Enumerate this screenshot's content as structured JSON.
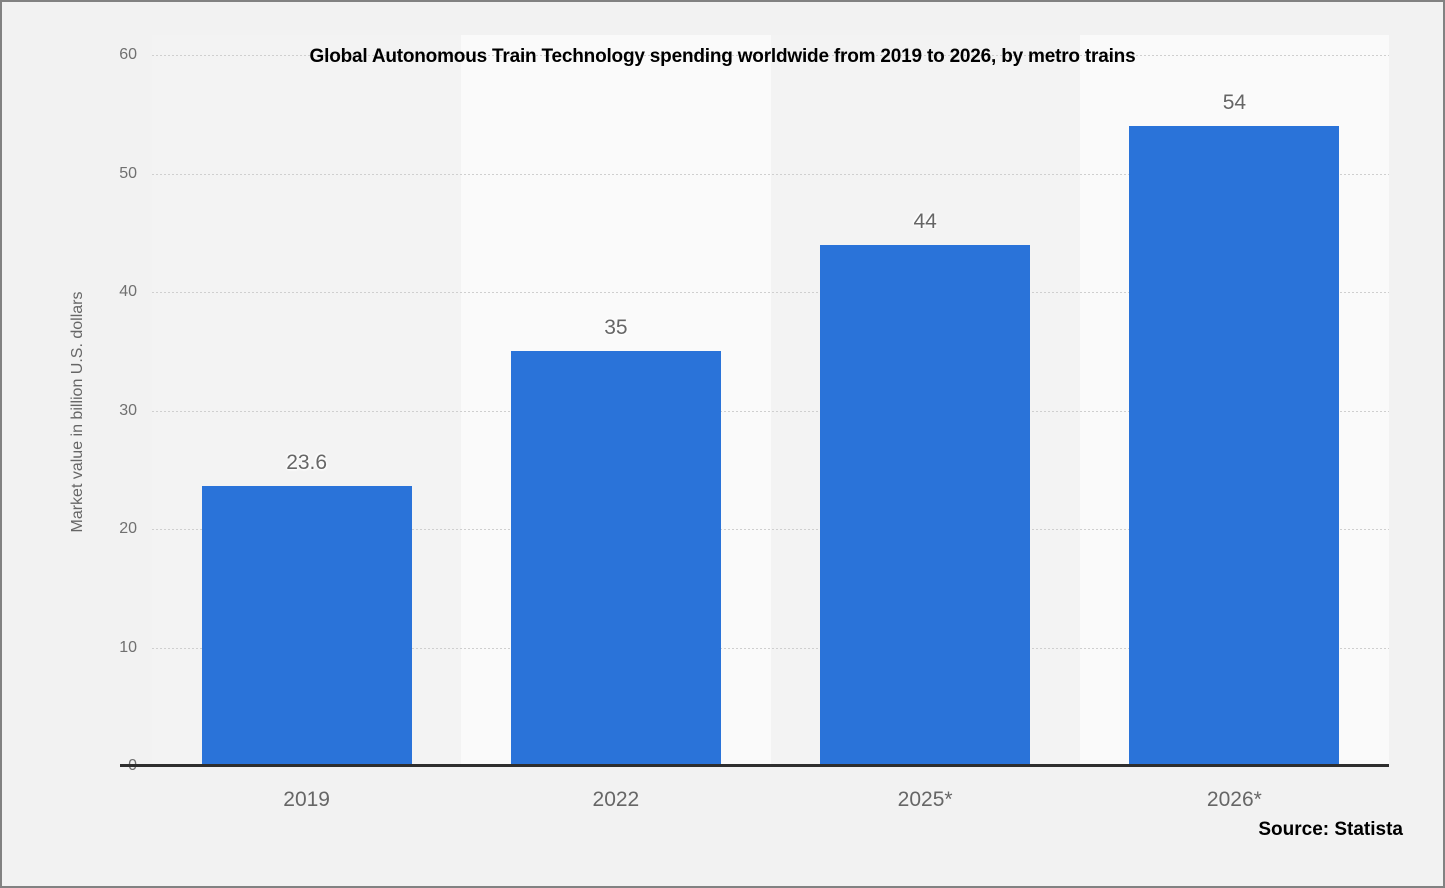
{
  "header": {
    "title": "Global Autonomous Train Technology spending worldwide from 2019 to 2026, by metro trains"
  },
  "footer": {
    "source_label": "Source: Statista"
  },
  "chart_data": {
    "type": "bar",
    "title": "Global Autonomous Train Technology spending worldwide from 2019 to 2026, by metro trains",
    "categories": [
      "2019",
      "2022",
      "2025*",
      "2026*"
    ],
    "values": [
      23.6,
      35,
      44,
      54
    ],
    "value_labels": [
      "23.6",
      "35",
      "44",
      "54"
    ],
    "xlabel": "",
    "ylabel": "Market value in billion U.S. dollars",
    "ylim": [
      0,
      60
    ],
    "yticks": [
      0,
      10,
      20,
      30,
      40,
      50,
      60
    ],
    "grid": "horizontal-dotted",
    "legend": "none",
    "colors": {
      "bar": "#2a73d9",
      "background": "#f2f2f2",
      "band_alt": [
        "#f3f3f3",
        "#fafafa"
      ],
      "gridline": "#cfcfcf",
      "axis_line": "#2e2e2e",
      "tick_text": "#707070",
      "label_text": "#666666",
      "title_text": "#000000"
    }
  }
}
